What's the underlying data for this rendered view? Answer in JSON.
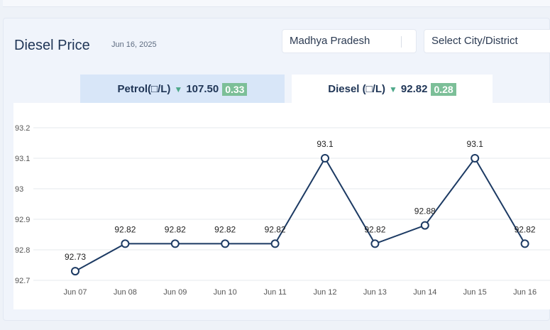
{
  "header": {
    "title": "Diesel Price",
    "date": "Jun 16, 2025"
  },
  "filters": {
    "state": "Madhya Pradesh",
    "city": "Select City/District"
  },
  "tabs": [
    {
      "label": "Petrol(□/L)",
      "price": "107.50",
      "change": "0.33",
      "active": false
    },
    {
      "label": "Diesel (□/L)",
      "price": "92.82",
      "change": "0.28",
      "active": true
    }
  ],
  "colors": {
    "line": "#1c3a63",
    "badge": "#7cbf98",
    "down_arrow": "#4da889"
  },
  "chart_data": {
    "type": "line",
    "categories": [
      "Jun 07",
      "Jun 08",
      "Jun 09",
      "Jun 10",
      "Jun 11",
      "Jun 12",
      "Jun 13",
      "Jun 14",
      "Jun 15",
      "Jun 16"
    ],
    "values": [
      92.73,
      92.82,
      92.82,
      92.82,
      92.82,
      93.1,
      92.82,
      92.88,
      93.1,
      92.82
    ],
    "data_labels": [
      "92.73",
      "92.82",
      "92.82",
      "92.82",
      "92.82",
      "93.1",
      "92.82",
      "92.88",
      "93.1",
      "92.82"
    ],
    "yticks": [
      "92.7",
      "92.8",
      "92.9",
      "93",
      "93.1",
      "93.2"
    ],
    "ylim": [
      92.7,
      93.2
    ],
    "grid": true,
    "title": "",
    "xlabel": "",
    "ylabel": ""
  }
}
